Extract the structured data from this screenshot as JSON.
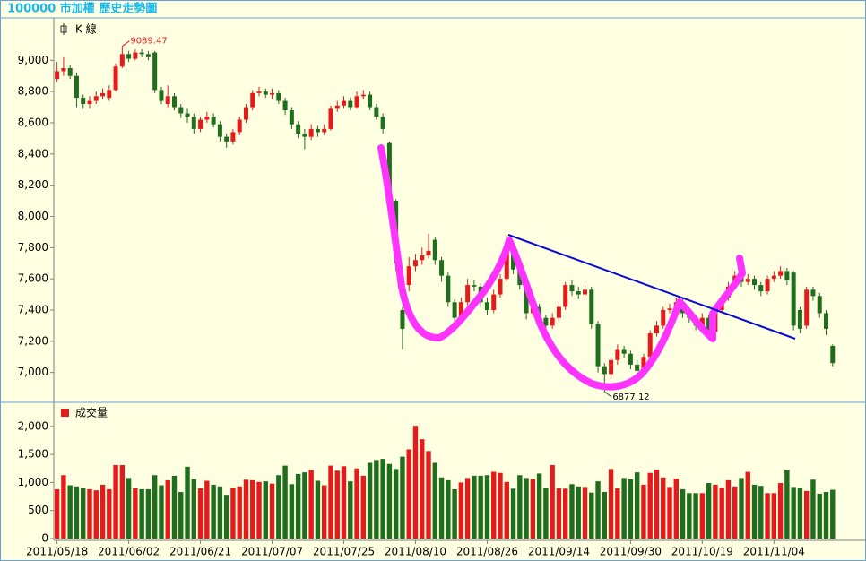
{
  "chart_data": [
    {
      "type": "candlestick",
      "title": "100000 市加權  歷史走勢圖",
      "legend": "K 線",
      "up_color": "#e41b1b",
      "down_color": "#1e6e1e",
      "ylim": [
        6820,
        9260
      ],
      "yticks": [
        {
          "value": 7000,
          "label": "7,000"
        },
        {
          "value": 7200,
          "label": "7,200"
        },
        {
          "value": 7400,
          "label": "7,400"
        },
        {
          "value": 7600,
          "label": "7,600"
        },
        {
          "value": 7800,
          "label": "7,800"
        },
        {
          "value": 8000,
          "label": "8,000"
        },
        {
          "value": 8200,
          "label": "8,200"
        },
        {
          "value": 8400,
          "label": "8,400"
        },
        {
          "value": 8600,
          "label": "8,600"
        },
        {
          "value": 8800,
          "label": "8,800"
        },
        {
          "value": 9000,
          "label": "9,000"
        }
      ],
      "open": [
        8880,
        8930,
        8950,
        8900,
        8760,
        8720,
        8740,
        8770,
        8760,
        8810,
        8960,
        9040,
        9010,
        9050,
        9040,
        9050,
        8810,
        8720,
        8770,
        8700,
        8660,
        8640,
        8560,
        8620,
        8640,
        8590,
        8510,
        8480,
        8540,
        8620,
        8700,
        8790,
        8800,
        8780,
        8790,
        8740,
        8680,
        8590,
        8530,
        8510,
        8560,
        8540,
        8560,
        8690,
        8710,
        8740,
        8700,
        8770,
        8780,
        8700,
        8640,
        8470,
        8100,
        7400,
        7560,
        7680,
        7720,
        7750,
        7850,
        7720,
        7620,
        7450,
        7350,
        7450,
        7560,
        7550,
        7450,
        7400,
        7500,
        7600,
        7800,
        7660,
        7560,
        7380,
        7420,
        7350,
        7300,
        7350,
        7420,
        7560,
        7520,
        7500,
        7530,
        7310,
        7040,
        6990,
        7080,
        7150,
        7120,
        7050,
        7010,
        7100,
        7250,
        7300,
        7400,
        7410,
        7450,
        7380,
        7350,
        7300,
        7350,
        7260,
        7400,
        7480,
        7550,
        7620,
        7580,
        7600,
        7560,
        7520,
        7600,
        7620,
        7650,
        7640,
        7400,
        7300,
        7530,
        7490,
        7380,
        7170
      ],
      "high": [
        8990,
        9020,
        8970,
        8920,
        8780,
        8770,
        8800,
        8820,
        8840,
        8980,
        9089.47,
        9060,
        9070,
        9070,
        9060,
        9060,
        8830,
        8840,
        8790,
        8720,
        8690,
        8660,
        8640,
        8670,
        8660,
        8610,
        8530,
        8560,
        8640,
        8720,
        8810,
        8830,
        8820,
        8820,
        8810,
        8760,
        8700,
        8610,
        8560,
        8590,
        8580,
        8590,
        8710,
        8740,
        8770,
        8760,
        8800,
        8810,
        8800,
        8720,
        8660,
        8480,
        8110,
        7420,
        7740,
        7760,
        7800,
        7890,
        7870,
        7740,
        7640,
        7470,
        7480,
        7600,
        7590,
        7570,
        7480,
        7530,
        7630,
        7880,
        7820,
        7690,
        7580,
        7450,
        7440,
        7370,
        7380,
        7450,
        7580,
        7590,
        7550,
        7560,
        7550,
        7330,
        7060,
        7100,
        7180,
        7170,
        7140,
        7080,
        7120,
        7270,
        7330,
        7420,
        7440,
        7480,
        7470,
        7400,
        7370,
        7380,
        7370,
        7420,
        7500,
        7580,
        7650,
        7640,
        7630,
        7620,
        7580,
        7620,
        7650,
        7680,
        7670,
        7650,
        7420,
        7550,
        7550,
        7510,
        7400,
        7180
      ],
      "low": [
        8860,
        8900,
        8880,
        8700,
        8690,
        8690,
        8720,
        8750,
        8740,
        8800,
        8950,
        8990,
        9000,
        9020,
        9000,
        8790,
        8720,
        8700,
        8680,
        8630,
        8600,
        8530,
        8540,
        8600,
        8570,
        8480,
        8440,
        8460,
        8520,
        8600,
        8680,
        8770,
        8760,
        8750,
        8720,
        8650,
        8560,
        8500,
        8430,
        8490,
        8510,
        8520,
        8550,
        8670,
        8690,
        8680,
        8690,
        8750,
        8680,
        8620,
        8530,
        8070,
        7650,
        7150,
        7520,
        7650,
        7690,
        7730,
        7690,
        7580,
        7420,
        7320,
        7330,
        7430,
        7520,
        7420,
        7370,
        7380,
        7480,
        7580,
        7630,
        7530,
        7340,
        7350,
        7320,
        7260,
        7280,
        7330,
        7400,
        7490,
        7470,
        7480,
        7280,
        7000,
        6877.12,
        6960,
        7050,
        7090,
        7020,
        6980,
        6990,
        7080,
        7230,
        7280,
        7380,
        7390,
        7350,
        7320,
        7270,
        7280,
        7230,
        7240,
        7380,
        7460,
        7530,
        7550,
        7560,
        7530,
        7490,
        7500,
        7580,
        7600,
        7560,
        7270,
        7250,
        7280,
        7460,
        7350,
        7240,
        7040
      ],
      "close": [
        8930,
        8950,
        8900,
        8760,
        8720,
        8740,
        8770,
        8790,
        8810,
        8960,
        9040,
        9010,
        9050,
        9040,
        9020,
        8810,
        8740,
        8770,
        8700,
        8660,
        8640,
        8560,
        8620,
        8640,
        8590,
        8510,
        8480,
        8540,
        8620,
        8700,
        8790,
        8800,
        8780,
        8790,
        8740,
        8680,
        8590,
        8530,
        8510,
        8560,
        8540,
        8560,
        8690,
        8710,
        8740,
        8700,
        8770,
        8780,
        8700,
        8640,
        8560,
        8100,
        7700,
        7280,
        7680,
        7720,
        7750,
        7780,
        7720,
        7620,
        7450,
        7350,
        7450,
        7560,
        7550,
        7450,
        7400,
        7500,
        7600,
        7800,
        7660,
        7560,
        7380,
        7420,
        7350,
        7300,
        7350,
        7420,
        7560,
        7520,
        7500,
        7530,
        7310,
        7040,
        6990,
        7080,
        7150,
        7120,
        7050,
        7010,
        7100,
        7250,
        7300,
        7400,
        7410,
        7450,
        7380,
        7350,
        7300,
        7350,
        7260,
        7400,
        7480,
        7550,
        7620,
        7580,
        7600,
        7560,
        7520,
        7600,
        7620,
        7650,
        7590,
        7300,
        7280,
        7530,
        7490,
        7380,
        7280,
        7060
      ]
    },
    {
      "type": "bar",
      "legend": "成交量",
      "color": "#e41b1b",
      "ylim": [
        0,
        2380
      ],
      "yticks": [
        0,
        500,
        {
          "value": 1000,
          "label": "1,000"
        },
        {
          "value": 1500,
          "label": "1,500"
        },
        {
          "value": 2000,
          "label": "2,000"
        }
      ],
      "categories": [
        "2011/05/18",
        null,
        null,
        null,
        null,
        null,
        null,
        null,
        null,
        null,
        null,
        "2011/06/02",
        null,
        null,
        null,
        null,
        null,
        null,
        null,
        null,
        null,
        null,
        "2011/06/21",
        null,
        null,
        null,
        null,
        null,
        null,
        null,
        null,
        null,
        null,
        "2011/07/07",
        null,
        null,
        null,
        null,
        null,
        null,
        null,
        null,
        null,
        null,
        "2011/07/25",
        null,
        null,
        null,
        null,
        null,
        null,
        null,
        null,
        null,
        null,
        "2011/08/10",
        null,
        null,
        null,
        null,
        null,
        null,
        null,
        null,
        null,
        null,
        "2011/08/26",
        null,
        null,
        null,
        null,
        null,
        null,
        null,
        null,
        null,
        null,
        "2011/09/14",
        null,
        null,
        null,
        null,
        null,
        null,
        null,
        null,
        null,
        null,
        "2011/09/30",
        null,
        null,
        null,
        null,
        null,
        null,
        null,
        null,
        null,
        null,
        "2011/10/19",
        null,
        null,
        null,
        null,
        null,
        null,
        null,
        null,
        null,
        null,
        "2011/11/04",
        null,
        null,
        null,
        null,
        null,
        null,
        null,
        null,
        null
      ],
      "values": [
        880,
        1130,
        950,
        930,
        910,
        880,
        860,
        960,
        880,
        1310,
        1310,
        1080,
        900,
        880,
        880,
        1130,
        950,
        1040,
        1120,
        830,
        1280,
        1060,
        900,
        1030,
        960,
        930,
        780,
        910,
        930,
        1050,
        1040,
        1010,
        1020,
        980,
        1130,
        1300,
        970,
        1150,
        1180,
        1220,
        1030,
        950,
        1300,
        1210,
        1290,
        1020,
        1250,
        1120,
        1350,
        1400,
        1420,
        1330,
        1240,
        1460,
        1590,
        2010,
        1770,
        1560,
        1350,
        1090,
        1040,
        880,
        1000,
        1080,
        1120,
        1120,
        1130,
        1190,
        1170,
        1010,
        890,
        1130,
        1080,
        1060,
        1160,
        910,
        1310,
        900,
        890,
        970,
        930,
        920,
        820,
        1020,
        830,
        1240,
        900,
        1080,
        1060,
        1180,
        960,
        1170,
        1230,
        1090,
        920,
        1070,
        880,
        810,
        810,
        810,
        990,
        960,
        910,
        1040,
        930,
        1080,
        1190,
        960,
        940,
        810,
        810,
        990,
        1230,
        920,
        910,
        850,
        1050,
        800,
        830,
        870
      ]
    }
  ]
}
